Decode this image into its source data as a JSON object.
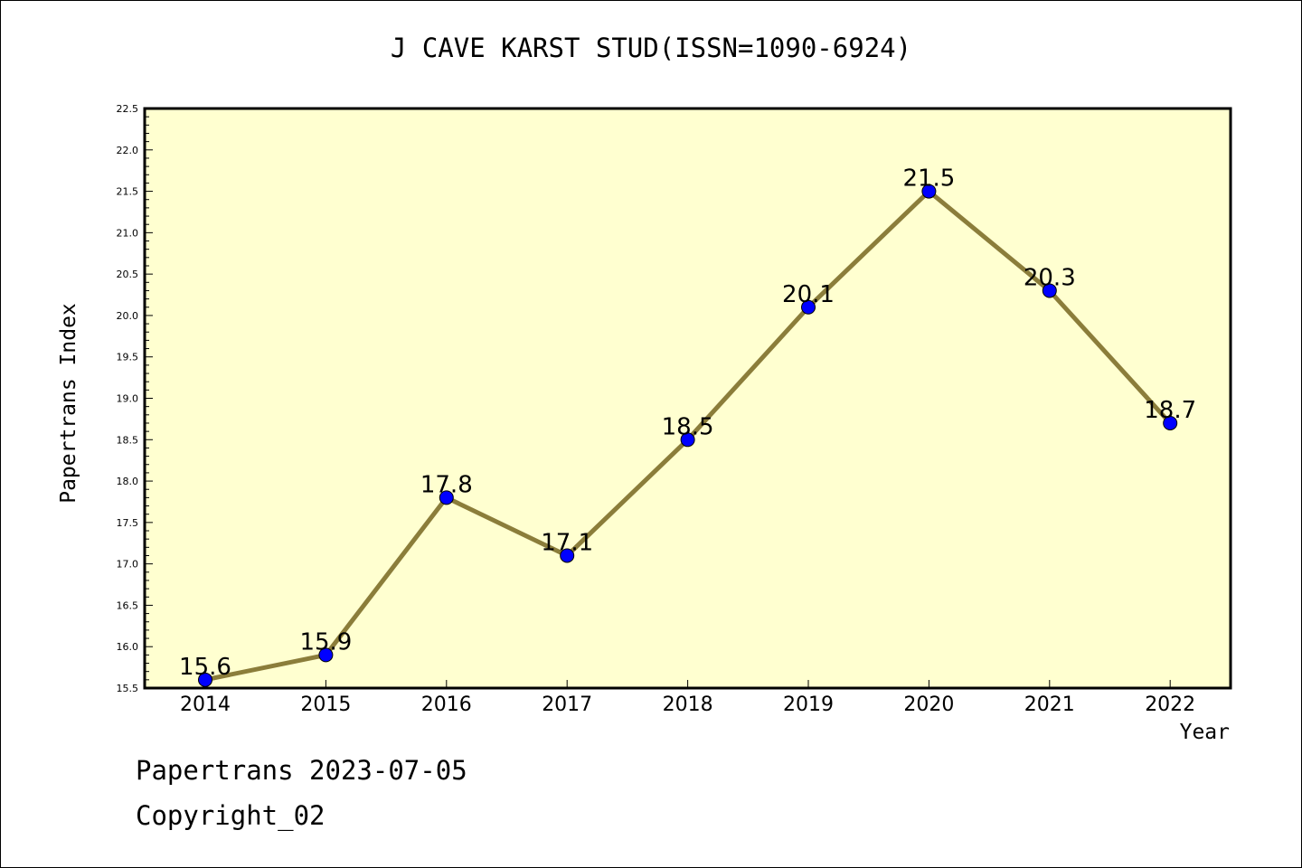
{
  "chart_data": {
    "type": "line",
    "title": "J CAVE KARST STUD(ISSN=1090-6924)",
    "xlabel": "Year",
    "ylabel": "Papertrans Index",
    "categories": [
      "2014",
      "2015",
      "2016",
      "2017",
      "2018",
      "2019",
      "2020",
      "2021",
      "2022"
    ],
    "series": [
      {
        "values": [
          15.6,
          15.9,
          17.8,
          17.1,
          18.5,
          20.1,
          21.5,
          20.3,
          18.7
        ],
        "data_labels": [
          "15.6",
          "15.9",
          "17.8",
          "17.1",
          "18.5",
          "20.1",
          "21.5",
          "20.3",
          "18.7"
        ]
      }
    ],
    "ylim": [
      15.5,
      22.5
    ],
    "yticks": [
      "15.5",
      "16.0",
      "16.5",
      "17.0",
      "17.5",
      "18.0",
      "18.5",
      "19.0",
      "19.5",
      "20.0",
      "20.5",
      "21.0",
      "21.5",
      "22.0",
      "22.5"
    ],
    "grid": false,
    "legend": "none",
    "colors": {
      "plot_background": "#ffffd0",
      "line": "#8b7d3a",
      "marker": "#0000ff"
    }
  },
  "footer": {
    "line1": "Papertrans 2023-07-05",
    "line2": "Copyright_02"
  }
}
